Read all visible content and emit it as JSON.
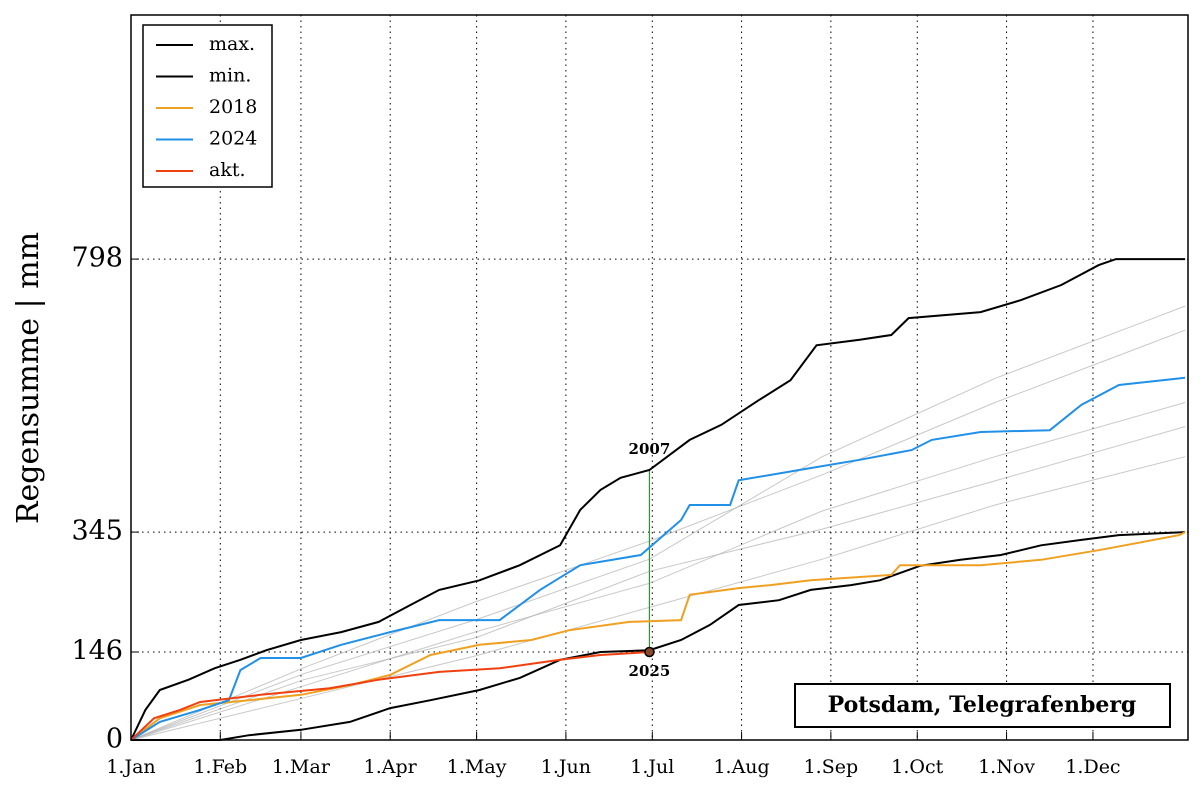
{
  "chart_data": {
    "type": "line",
    "ylabel": "Regensumme | mm",
    "xlim": [
      0,
      367
    ],
    "ylim": [
      0,
      1203
    ],
    "xticks": [
      {
        "value": 0,
        "label": "1.Jan"
      },
      {
        "value": 31,
        "label": "1.Feb"
      },
      {
        "value": 59,
        "label": "1.Mar"
      },
      {
        "value": 90,
        "label": "1.Apr"
      },
      {
        "value": 120,
        "label": "1.May"
      },
      {
        "value": 151,
        "label": "1.Jun"
      },
      {
        "value": 181,
        "label": "1.Jul"
      },
      {
        "value": 212,
        "label": "1.Aug"
      },
      {
        "value": 243,
        "label": "1.Sep"
      },
      {
        "value": 273,
        "label": "1.Oct"
      },
      {
        "value": 304,
        "label": "1.Nov"
      },
      {
        "value": 334,
        "label": "1.Dec"
      }
    ],
    "yticks": [
      0,
      146,
      345,
      798
    ],
    "grid": true,
    "legend": "upper left",
    "location": "Potsdam, Telegrafenberg",
    "background_color": "#b0b0b0",
    "background_series": [
      {
        "x": [
          0,
          60,
          120,
          180,
          240,
          300,
          366
        ],
        "values": [
          0,
          90,
          180,
          260,
          380,
          470,
          560
        ]
      },
      {
        "x": [
          0,
          60,
          120,
          180,
          240,
          300,
          366
        ],
        "values": [
          0,
          120,
          230,
          330,
          440,
          560,
          680
        ]
      },
      {
        "x": [
          0,
          60,
          120,
          180,
          240,
          300,
          366
        ],
        "values": [
          0,
          70,
          140,
          220,
          300,
          390,
          470
        ]
      },
      {
        "x": [
          0,
          60,
          120,
          180,
          240,
          300,
          366
        ],
        "values": [
          0,
          110,
          200,
          300,
          470,
          600,
          720
        ]
      },
      {
        "x": [
          0,
          60,
          120,
          180,
          240,
          300,
          366
        ],
        "values": [
          0,
          100,
          170,
          280,
          350,
          430,
          520
        ]
      }
    ],
    "series": [
      {
        "name": "max.",
        "color": "#000000",
        "x": [
          0,
          5,
          10,
          20,
          29,
          38,
          47,
          59,
          73,
          86,
          97,
          107,
          121,
          135,
          149,
          156,
          163,
          170,
          180,
          194,
          205,
          218,
          229,
          238,
          253,
          264,
          270,
          295,
          309,
          323,
          336,
          342,
          366
        ],
        "values": [
          0,
          50,
          83,
          100,
          119,
          133,
          149,
          166,
          179,
          196,
          224,
          249,
          265,
          290,
          323,
          382,
          415,
          435,
          448,
          498,
          523,
          564,
          597,
          655,
          664,
          672,
          700,
          710,
          730,
          755,
          788,
          798,
          798
        ]
      },
      {
        "name": "min.",
        "color": "#000000",
        "x": [
          0,
          31,
          41,
          59,
          76,
          90,
          104,
          121,
          135,
          149,
          163,
          180,
          191,
          201,
          211,
          225,
          236,
          250,
          260,
          274,
          288,
          302,
          316,
          330,
          343,
          366
        ],
        "values": [
          0,
          0,
          8,
          17,
          30,
          53,
          66,
          83,
          103,
          133,
          146,
          149,
          166,
          191,
          224,
          232,
          249,
          257,
          265,
          289,
          299,
          307,
          323,
          332,
          340,
          345
        ]
      },
      {
        "name": "2018",
        "color": "#f0a020",
        "x": [
          0,
          10,
          24,
          41,
          59,
          76,
          90,
          104,
          121,
          139,
          152,
          173,
          191,
          194,
          211,
          222,
          236,
          264,
          267,
          295,
          316,
          336,
          364,
          366
        ],
        "values": [
          0,
          36,
          58,
          66,
          75,
          91,
          108,
          141,
          158,
          166,
          182,
          196,
          199,
          241,
          252,
          257,
          265,
          274,
          290,
          290,
          299,
          315,
          340,
          345
        ]
      },
      {
        "name": "2024",
        "color": "#2090e8",
        "x": [
          0,
          10,
          24,
          34,
          38,
          45,
          59,
          73,
          90,
          107,
          128,
          142,
          156,
          177,
          191,
          194,
          208,
          211,
          232,
          253,
          271,
          278,
          295,
          319,
          330,
          343,
          366
        ],
        "values": [
          0,
          30,
          50,
          66,
          116,
          136,
          136,
          158,
          179,
          199,
          199,
          249,
          290,
          307,
          365,
          390,
          390,
          431,
          448,
          465,
          481,
          498,
          511,
          514,
          556,
          589,
          601
        ]
      },
      {
        "name": "akt.",
        "color": "#f04010",
        "x": [
          0,
          8,
          17,
          24,
          45,
          69,
          86,
          107,
          128,
          149,
          163,
          180
        ],
        "values": [
          0,
          36,
          50,
          63,
          75,
          86,
          100,
          113,
          119,
          133,
          141,
          146
        ]
      }
    ],
    "annotations": [
      {
        "text": "2007",
        "x": 180,
        "y": 448
      },
      {
        "text": "2025",
        "x": 180,
        "y": 146
      }
    ]
  }
}
